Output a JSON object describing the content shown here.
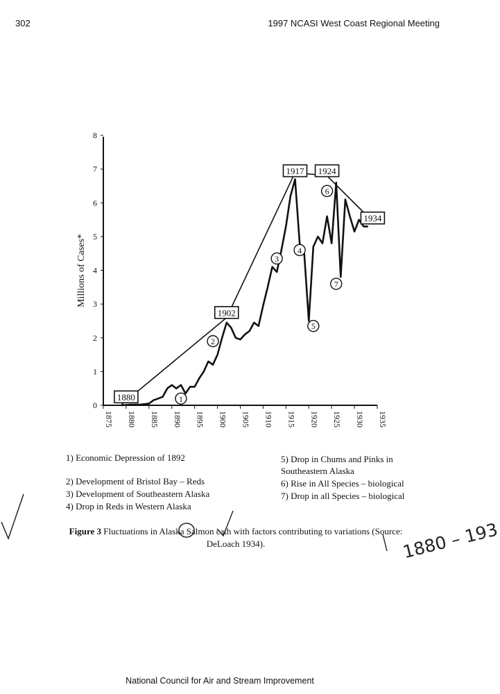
{
  "header": {
    "page_number": "302",
    "running_title": "1997 NCASI West Coast Regional Meeting"
  },
  "chart_data": {
    "type": "line",
    "title": "",
    "xlabel": "",
    "ylabel": "Millions of Cases*",
    "xlim": [
      1875,
      1935
    ],
    "ylim": [
      0,
      8
    ],
    "x_ticks": [
      "1875",
      "1880",
      "1885",
      "1890",
      "1895",
      "1900",
      "1905",
      "1910",
      "1915",
      "1920",
      "1925",
      "1930",
      "1935"
    ],
    "y_ticks": [
      "0",
      "1",
      "2",
      "3",
      "4",
      "5",
      "6",
      "7",
      "8"
    ],
    "grid": false,
    "series": [
      {
        "name": "",
        "x": [
          1879,
          1881,
          1883,
          1885,
          1886,
          1887,
          1888,
          1889,
          1890,
          1891,
          1892,
          1893,
          1894,
          1895,
          1896,
          1897,
          1898,
          1899,
          1900,
          1901,
          1902,
          1903,
          1904,
          1905,
          1906,
          1907,
          1908,
          1909,
          1910,
          1911,
          1912,
          1913,
          1914,
          1915,
          1916,
          1917,
          1918,
          1919,
          1920,
          1921,
          1922,
          1923,
          1924,
          1925,
          1926,
          1927,
          1928,
          1929,
          1930,
          1931,
          1932,
          1933
        ],
        "values": [
          0.0,
          0.02,
          0.02,
          0.05,
          0.15,
          0.2,
          0.25,
          0.5,
          0.6,
          0.5,
          0.6,
          0.35,
          0.55,
          0.55,
          0.8,
          1.0,
          1.3,
          1.2,
          1.5,
          2.0,
          2.45,
          2.3,
          2.0,
          1.95,
          2.1,
          2.2,
          2.45,
          2.35,
          2.95,
          3.5,
          4.1,
          3.95,
          4.6,
          5.3,
          6.2,
          6.7,
          4.8,
          4.5,
          2.5,
          4.7,
          5.0,
          4.8,
          5.6,
          4.8,
          6.6,
          3.8,
          6.1,
          5.6,
          5.15,
          5.5,
          5.3,
          5.3
        ]
      },
      {
        "name": "",
        "x": [
          1879,
          1902,
          1917,
          1924,
          1934
        ],
        "values": [
          0.02,
          2.6,
          6.9,
          6.8,
          5.45
        ]
      }
    ],
    "year_labels": [
      {
        "text": "1880",
        "x": 1880,
        "y": 0.25
      },
      {
        "text": "1902",
        "x": 1902,
        "y": 2.75
      },
      {
        "text": "1917",
        "x": 1917,
        "y": 6.95
      },
      {
        "text": "1924",
        "x": 1924,
        "y": 6.95
      },
      {
        "text": "1934",
        "x": 1934,
        "y": 5.55
      }
    ],
    "markers": [
      {
        "text": "1",
        "x": 1892,
        "y": 0.2
      },
      {
        "text": "2",
        "x": 1899,
        "y": 1.9
      },
      {
        "text": "3",
        "x": 1913,
        "y": 4.35
      },
      {
        "text": "4",
        "x": 1918,
        "y": 4.6
      },
      {
        "text": "5",
        "x": 1921,
        "y": 2.35
      },
      {
        "text": "6",
        "x": 1924,
        "y": 6.35
      },
      {
        "text": "7",
        "x": 1926,
        "y": 3.6
      }
    ]
  },
  "legend": {
    "left": [
      "1) Economic Depression of 1892",
      "2) Development of Bristol Bay – Reds",
      "3) Development of Southeastern Alaska",
      "4) Drop in Reds in Western Alaska"
    ],
    "right": [
      "5) Drop in Chums and Pinks in",
      "Southeastern Alaska",
      "6) Rise in All Species – biological",
      "7) Drop in all Species – biological"
    ]
  },
  "caption": {
    "label": "Figure 3",
    "text": "Fluctuations in Alaska Salmon cath with factors contributing to variations (Source:",
    "text2": "DeLoach 1934)."
  },
  "handwriting": {
    "annotation": "1880 – 193"
  },
  "footer": {
    "text": "National Council for Air and Stream Improvement"
  },
  "colors": {
    "ink": "#111111",
    "paper": "#ffffff"
  }
}
